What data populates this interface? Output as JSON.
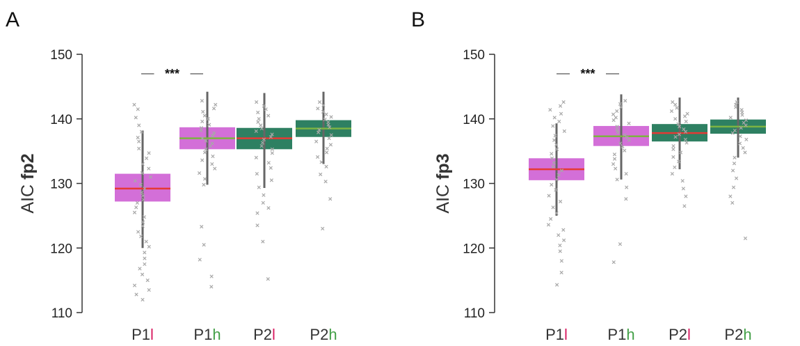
{
  "chart_data": [
    {
      "type": "box",
      "panel_label": "A",
      "ylabel_prefix": "AIC ",
      "ylabel_bold": "fp2",
      "ylim": [
        110,
        150
      ],
      "yticks": [
        "110",
        "120",
        "130",
        "140",
        "150"
      ],
      "categories": [
        {
          "prefix": "P1",
          "suffix": "l",
          "suffix_color": "#d81b60"
        },
        {
          "prefix": "P1",
          "suffix": "h",
          "suffix_color": "#43a047"
        },
        {
          "prefix": "P2",
          "suffix": "l",
          "suffix_color": "#d81b60"
        },
        {
          "prefix": "P2",
          "suffix": "h",
          "suffix_color": "#43a047"
        }
      ],
      "boxes": [
        {
          "q1": 127.2,
          "median": 129.2,
          "q3": 131.5,
          "whisker_low": 120.0,
          "whisker_high": 138.2,
          "fill": "#d36fd8",
          "median_color": "#e53935"
        },
        {
          "q1": 135.3,
          "median": 137.0,
          "q3": 138.7,
          "whisker_low": 129.8,
          "whisker_high": 144.2,
          "fill": "#d36fd8",
          "median_color": "#7cb342"
        },
        {
          "q1": 135.3,
          "median": 137.0,
          "q3": 138.6,
          "whisker_low": 129.3,
          "whisker_high": 144.0,
          "fill": "#2e8062",
          "median_color": "#e53935"
        },
        {
          "q1": 137.2,
          "median": 138.5,
          "q3": 139.8,
          "whisker_low": 133.0,
          "whisker_high": 144.2,
          "fill": "#2e8062",
          "median_color": "#7cb342"
        }
      ],
      "points": [
        [
          142.2,
          141.5,
          140.2,
          139.0,
          138.0,
          137.1,
          136.5,
          135.4,
          134.7,
          133.9,
          133.0,
          132.3,
          131.6,
          131.0,
          130.4,
          129.8,
          129.2,
          128.6,
          128.1,
          127.5,
          127.0,
          126.3,
          125.5,
          124.8,
          124.0,
          123.4,
          122.5,
          121.8,
          121.0,
          120.2,
          119.3,
          118.4,
          117.5,
          116.8,
          115.9,
          115.0,
          114.2,
          113.5,
          112.8,
          112.0
        ],
        [
          142.8,
          142.2,
          141.6,
          141.1,
          140.5,
          140.0,
          139.6,
          139.1,
          138.6,
          138.2,
          137.8,
          137.4,
          137.0,
          136.6,
          136.2,
          135.8,
          135.3,
          134.8,
          134.2,
          133.6,
          133.0,
          132.3,
          131.6,
          130.7,
          129.8,
          123.3,
          120.5,
          118.2,
          115.6,
          114.0
        ],
        [
          142.6,
          142.0,
          141.5,
          141.0,
          140.5,
          140.0,
          139.5,
          139.0,
          138.5,
          138.1,
          137.6,
          137.2,
          136.8,
          136.3,
          135.8,
          135.3,
          134.7,
          134.0,
          133.2,
          132.4,
          131.5,
          130.5,
          129.4,
          128.2,
          127.0,
          126.2,
          125.4,
          123.5,
          121.0,
          115.2
        ],
        [
          142.6,
          142.1,
          141.6,
          141.1,
          140.7,
          140.3,
          139.9,
          139.5,
          139.1,
          138.7,
          138.3,
          137.9,
          137.5,
          137.0,
          136.5,
          136.0,
          135.4,
          134.8,
          134.1,
          133.3,
          132.6,
          131.4,
          130.3,
          127.6,
          123.0
        ]
      ],
      "significance": {
        "label": "***"
      }
    },
    {
      "type": "box",
      "panel_label": "B",
      "ylabel_prefix": "AIC ",
      "ylabel_bold": "fp3",
      "ylim": [
        110,
        150
      ],
      "yticks": [
        "110",
        "120",
        "130",
        "140",
        "150"
      ],
      "categories": [
        {
          "prefix": "P1",
          "suffix": "l",
          "suffix_color": "#d81b60"
        },
        {
          "prefix": "P1",
          "suffix": "h",
          "suffix_color": "#43a047"
        },
        {
          "prefix": "P2",
          "suffix": "l",
          "suffix_color": "#d81b60"
        },
        {
          "prefix": "P2",
          "suffix": "h",
          "suffix_color": "#43a047"
        }
      ],
      "boxes": [
        {
          "q1": 130.5,
          "median": 132.2,
          "q3": 133.9,
          "whisker_low": 125.0,
          "whisker_high": 139.3,
          "fill": "#d36fd8",
          "median_color": "#e53935"
        },
        {
          "q1": 135.8,
          "median": 137.3,
          "q3": 138.9,
          "whisker_low": 130.6,
          "whisker_high": 143.8,
          "fill": "#d36fd8",
          "median_color": "#7cb342"
        },
        {
          "q1": 136.5,
          "median": 137.8,
          "q3": 139.2,
          "whisker_low": 132.2,
          "whisker_high": 143.3,
          "fill": "#2e8062",
          "median_color": "#e53935"
        },
        {
          "q1": 137.7,
          "median": 138.8,
          "q3": 139.9,
          "whisker_low": 134.0,
          "whisker_high": 143.3,
          "fill": "#2e8062",
          "median_color": "#7cb342"
        }
      ],
      "points": [
        [
          142.6,
          142.0,
          141.4,
          140.8,
          140.2,
          139.6,
          138.9,
          138.1,
          137.4,
          136.7,
          136.0,
          135.3,
          134.6,
          133.9,
          133.2,
          132.6,
          132.0,
          131.3,
          130.6,
          129.8,
          129.0,
          128.1,
          127.2,
          126.3,
          125.4,
          124.5,
          123.6,
          122.8,
          122.0,
          121.2,
          120.4,
          119.5,
          118.0,
          116.2,
          114.3
        ],
        [
          142.8,
          142.3,
          141.8,
          141.2,
          140.7,
          140.2,
          139.8,
          139.3,
          138.8,
          138.3,
          137.9,
          137.5,
          137.1,
          136.7,
          136.2,
          135.7,
          135.1,
          134.5,
          133.8,
          133.0,
          132.3,
          131.5,
          130.6,
          129.4,
          127.6,
          120.6,
          117.8
        ],
        [
          142.6,
          142.2,
          141.7,
          141.2,
          140.8,
          140.4,
          140.0,
          139.6,
          139.2,
          138.8,
          138.4,
          138.0,
          137.6,
          137.2,
          136.8,
          136.3,
          135.8,
          135.3,
          134.8,
          134.1,
          133.4,
          132.5,
          131.5,
          130.4,
          129.2,
          128.0,
          126.5
        ],
        [
          142.6,
          142.2,
          141.8,
          141.4,
          141.0,
          140.6,
          140.2,
          139.8,
          139.4,
          139.0,
          138.6,
          138.2,
          137.8,
          137.3,
          136.8,
          136.2,
          135.5,
          134.8,
          134.0,
          133.1,
          132.0,
          130.8,
          129.4,
          128.0,
          127.0,
          121.5
        ]
      ],
      "significance": {
        "label": "***"
      }
    }
  ]
}
